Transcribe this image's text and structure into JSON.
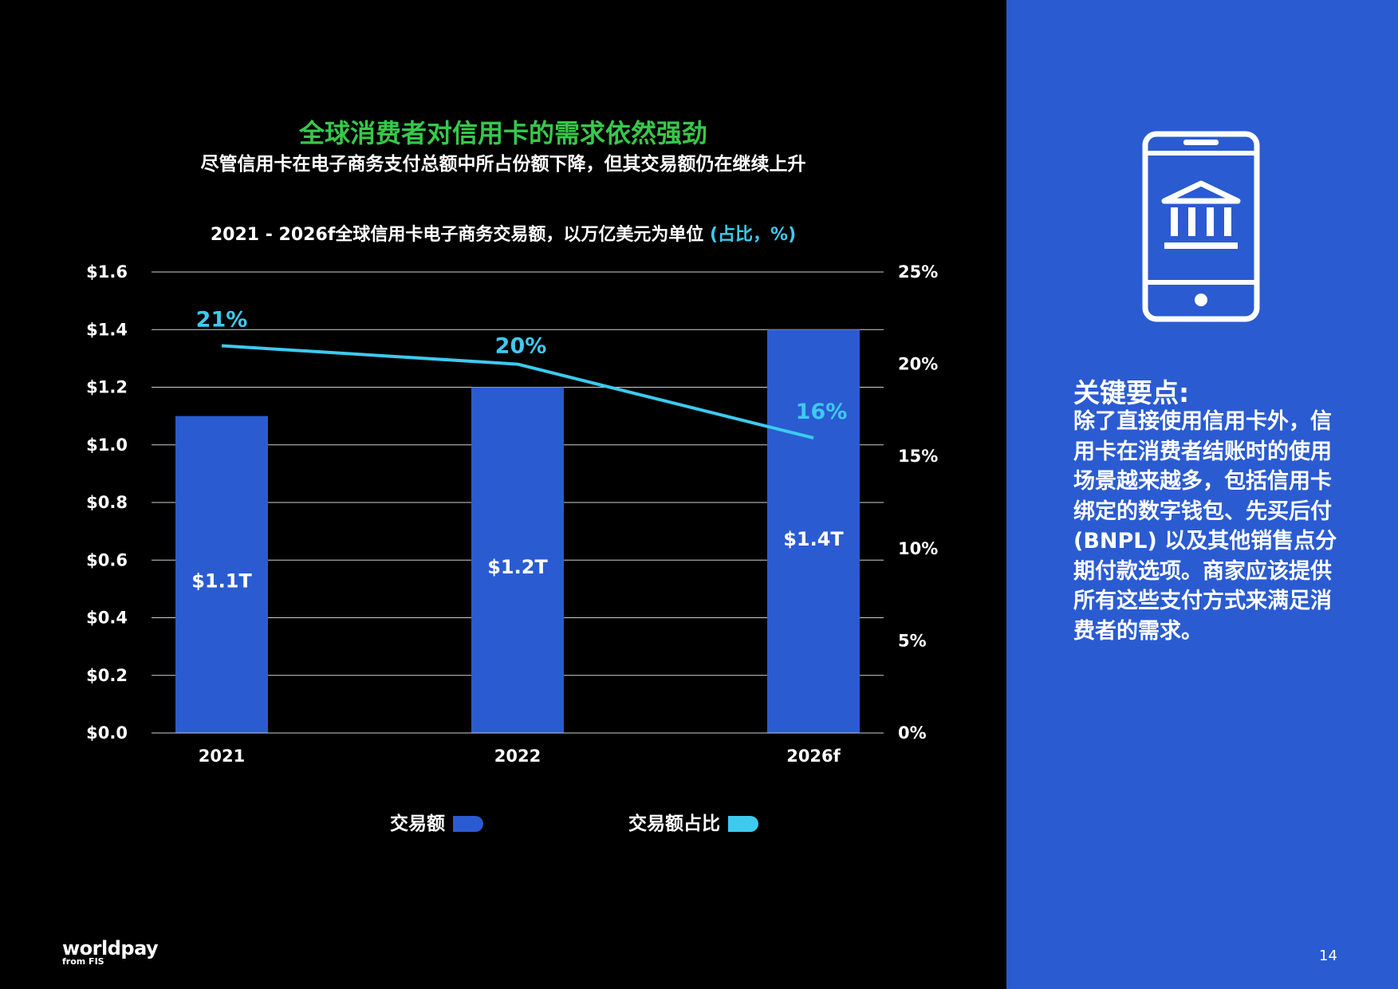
{
  "header": {
    "title": "全球消费者对信用卡的需求依然强劲",
    "subtitle": "尽管信用卡在电子商务支付总额中所占份额下降，但其交易额仍在继续上升"
  },
  "chart_header": {
    "main": "2021 - 2026f全球信用卡电子商务交易额，以万亿美元为单位 ",
    "accent": "(占比，%)"
  },
  "chart_data": {
    "type": "bar",
    "categories": [
      "2021",
      "2022",
      "2026f"
    ],
    "series": [
      {
        "name": "交易额",
        "type": "bar",
        "axis": "left",
        "values": [
          1.1,
          1.2,
          1.4
        ],
        "labels": [
          "$1.1T",
          "$1.2T",
          "$1.4T"
        ],
        "color": "#2a5bd1"
      },
      {
        "name": "交易额占比",
        "type": "line",
        "axis": "right",
        "values": [
          21,
          20,
          16
        ],
        "labels": [
          "21%",
          "20%",
          "16%"
        ],
        "color": "#3ec9ef"
      }
    ],
    "y_left": {
      "min": 0,
      "max": 1.6,
      "ticks": [
        "$0.0",
        "$0.2",
        "$0.4",
        "$0.6",
        "$0.8",
        "$1.0",
        "$1.2",
        "$1.4",
        "$1.6"
      ]
    },
    "y_right": {
      "min": 0,
      "max": 25,
      "ticks": [
        "0%",
        "5%",
        "10%",
        "15%",
        "20%",
        "25%"
      ]
    },
    "grid": true,
    "legend_position": "bottom"
  },
  "sidebar": {
    "icon": "mobile-bank-icon",
    "heading": "关键要点:",
    "body": "除了直接使用信用卡外，信用卡在消费者结账时的使用场景越来越多，包括信用卡绑定的数字钱包、先买后付 (BNPL) 以及其他销售点分期付款选项。商家应该提供所有这些支付方式来满足消费者的需求。"
  },
  "footer": {
    "brand": "worldpay",
    "brand_sub": "from FIS",
    "page_number": "14"
  },
  "colors": {
    "title_green": "#37c84a",
    "bar_blue": "#2a5bd1",
    "line_cyan": "#3ec9ef",
    "panel_blue": "#2a5bd1"
  }
}
